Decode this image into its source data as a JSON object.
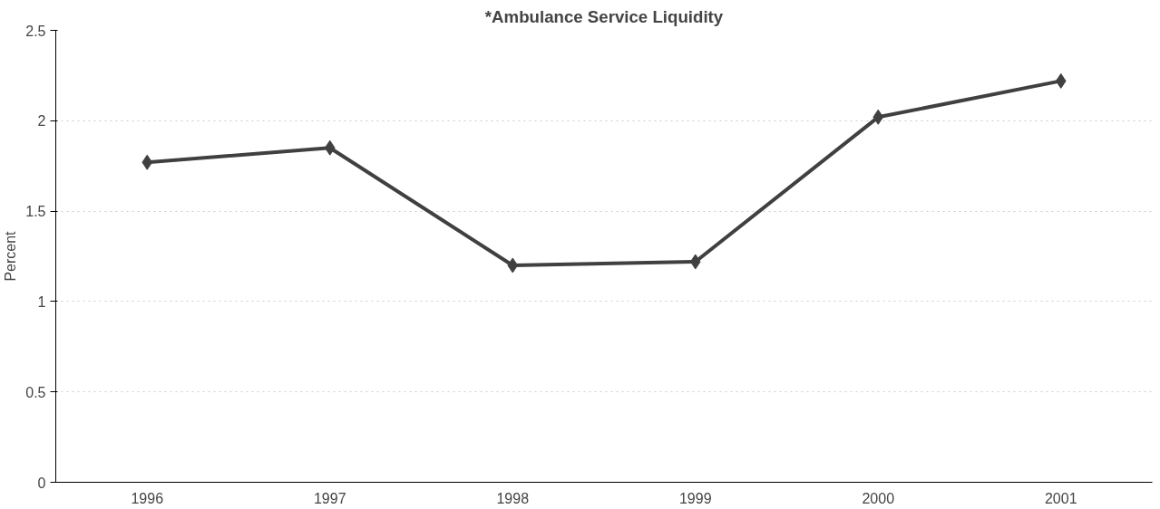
{
  "chart_data": {
    "type": "line",
    "title": "*Ambulance Service Liquidity",
    "ylabel": "Percent",
    "categories": [
      "1996",
      "1997",
      "1998",
      "1999",
      "2000",
      "2001"
    ],
    "series": [
      {
        "color": "#404040",
        "values": [
          1.77,
          1.85,
          1.2,
          1.22,
          2.02,
          2.22
        ]
      }
    ],
    "ylim": [
      0,
      2.5
    ],
    "yticks": [
      0,
      0.5,
      1,
      1.5,
      2,
      2.5
    ],
    "grid": "y",
    "marker": "diamond",
    "line_style": "solid"
  }
}
